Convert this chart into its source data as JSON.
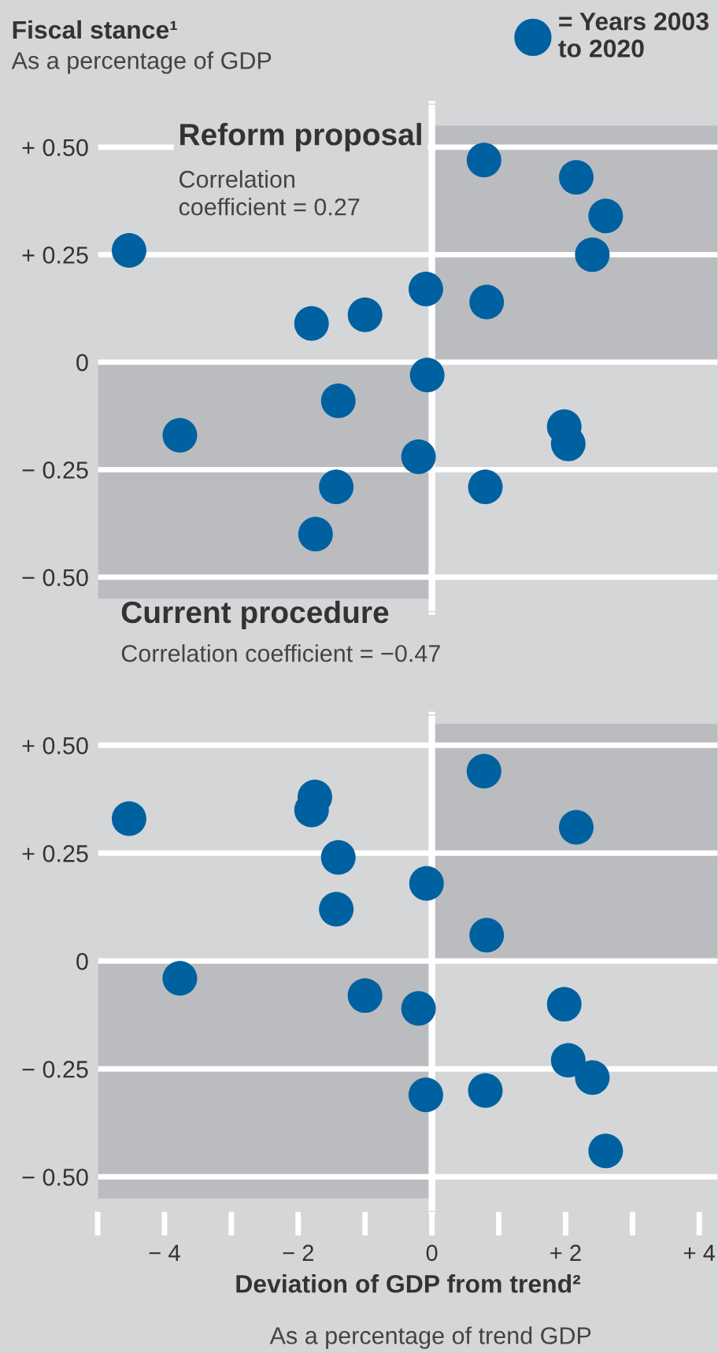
{
  "chart_data": [
    {
      "type": "scatter",
      "title": "Reform proposal",
      "ylabel": "Fiscal stance¹",
      "annotations": [
        "As a percentage of GDP",
        "Correlation\ncoefficient = 0.27"
      ],
      "series": [
        {
          "name": "= Years 2003\nto 2020",
          "color": "#0061a0",
          "x": [
            -4.53,
            -3.77,
            -1.8,
            -1.0,
            -1.4,
            -1.43,
            -1.74,
            -0.09,
            -0.07,
            -0.2,
            0.78,
            0.82,
            0.8,
            2.16,
            2.6,
            2.4,
            1.98,
            2.04
          ],
          "values": [
            0.26,
            -0.17,
            0.09,
            0.11,
            -0.09,
            -0.29,
            -0.4,
            0.17,
            -0.03,
            -0.22,
            0.47,
            0.14,
            -0.29,
            0.43,
            0.34,
            0.25,
            -0.15,
            -0.19
          ]
        }
      ],
      "marker": "circle",
      "legend": "top right",
      "grid": "y",
      "tick_labels": "y",
      "xlim": [
        -5,
        4.28
      ],
      "ylim": [
        -0.58,
        0.6
      ],
      "yticks": [
        {
          "value": 0.5,
          "label": "+ 0.50"
        },
        {
          "value": 0.25,
          "label": "+ 0.25"
        },
        0,
        {
          "value": -0.25,
          "label": "− 0.25"
        },
        {
          "value": -0.5,
          "label": "− 0.50"
        }
      ],
      "ref_lines": [
        {
          "axis": "x",
          "value": 0,
          "color": "#ffffff"
        }
      ],
      "bands": [
        {
          "axis": "y",
          "from": 0,
          "to": 0.55,
          "color": "#bbbcc0"
        },
        {
          "axis": "y",
          "from": -0.55,
          "to": 0,
          "color": "#bbbcc0"
        }
      ]
    },
    {
      "type": "scatter",
      "title": "Current procedure",
      "xlabel": "Deviation of GDP from trend²",
      "annotations": [
        "As a percentage of trend GDP",
        "Correlation coefficient = −0.47"
      ],
      "series": [
        {
          "color": "#0061a0",
          "x": [
            -4.53,
            -3.77,
            -1.75,
            -1.8,
            -1.4,
            -1.43,
            -1.0,
            -0.2,
            -0.08,
            -0.09,
            0.78,
            0.82,
            0.8,
            2.16,
            1.98,
            2.04,
            2.4,
            2.6
          ],
          "values": [
            0.33,
            -0.04,
            0.38,
            0.35,
            0.24,
            0.12,
            -0.08,
            -0.11,
            0.18,
            -0.31,
            0.44,
            0.06,
            -0.3,
            0.31,
            -0.1,
            -0.23,
            -0.27,
            -0.44
          ]
        }
      ],
      "marker": "circle",
      "grid": "y",
      "xlim": [
        -5,
        4.28
      ],
      "ylim": [
        -0.58,
        0.57
      ],
      "xticks": [
        {
          "value": -5,
          "label": null
        },
        {
          "value": -4,
          "label": "− 4"
        },
        {
          "value": -3,
          "label": null
        },
        {
          "value": -2,
          "label": "− 2"
        },
        {
          "value": -1,
          "label": null
        },
        0,
        {
          "value": 1,
          "label": null
        },
        {
          "value": 2,
          "label": "+ 2"
        },
        {
          "value": 3,
          "label": null
        },
        {
          "value": 4,
          "label": "+ 4"
        }
      ],
      "yticks": [
        {
          "value": 0.5,
          "label": "+ 0.50"
        },
        {
          "value": 0.25,
          "label": "+ 0.25"
        },
        0,
        {
          "value": -0.25,
          "label": "− 0.25"
        },
        {
          "value": -0.5,
          "label": "− 0.50"
        }
      ],
      "ref_lines": [
        {
          "axis": "x",
          "value": 0,
          "color": "#ffffff"
        }
      ],
      "bands": [
        {
          "axis": "y",
          "from": 0,
          "to": 0.55,
          "color": "#bbbcc0"
        },
        {
          "axis": "y",
          "from": -0.55,
          "to": 0,
          "color": "#bbbcc0"
        }
      ]
    }
  ]
}
